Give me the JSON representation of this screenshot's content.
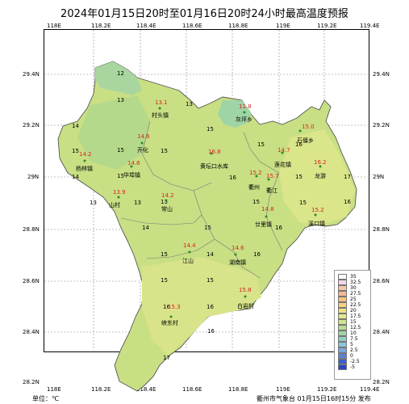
{
  "title": "2024年01月15日20时至01月16日20时24小时最高温度预报",
  "footer_left": "单位：℃",
  "footer_right": "衢州市气象台 01月15日16时15分 发布",
  "lon_ticks": [
    "118E",
    "118.2E",
    "118.4E",
    "118.6E",
    "118.8E",
    "119E",
    "119.2E",
    "119.4E"
  ],
  "lat_ticks": [
    "29.4N",
    "29.2N",
    "29N",
    "28.8N",
    "28.6N",
    "28.4N",
    "28.2N"
  ],
  "stations": [
    {
      "name": "村头镇",
      "temp": "13.1"
    },
    {
      "name": "灰坪乡",
      "temp": "11.8"
    },
    {
      "name": "石僵乡",
      "temp": "15.0"
    },
    {
      "name": "开化",
      "temp": "14.6"
    },
    {
      "name": "杨林镇",
      "temp": "14.2"
    },
    {
      "name": "华埠镇",
      "temp": "14.6"
    },
    {
      "name": "黄坛口水库",
      "temp": "16.8"
    },
    {
      "name": "莲花镇",
      "temp": "14.7"
    },
    {
      "name": "龙游",
      "temp": "16.2"
    },
    {
      "name": "衢州",
      "temp": "15.2"
    },
    {
      "name": "衢江",
      "temp": "15.7"
    },
    {
      "name": "山村",
      "temp": "13.9"
    },
    {
      "name": "常山",
      "temp": "14.2"
    },
    {
      "name": "溪口镇",
      "temp": "15.2"
    },
    {
      "name": "廿里镇",
      "temp": "14.8"
    },
    {
      "name": "江山",
      "temp": "14.4"
    },
    {
      "name": "湖南镇",
      "temp": "14.6"
    },
    {
      "name": "峡东村",
      "temp": "15.3"
    },
    {
      "name": "白岩村",
      "temp": "15.8"
    }
  ],
  "contour_labels": [
    "12",
    "13",
    "13",
    "14",
    "15",
    "15",
    "15",
    "15",
    "16",
    "14",
    "13",
    "15",
    "13",
    "16",
    "15",
    "15",
    "17",
    "16",
    "15",
    "16",
    "14",
    "15",
    "15",
    "14",
    "15",
    "16",
    "16",
    "15",
    "16",
    "17",
    "15",
    "13",
    "16"
  ],
  "legend_labels": [
    "35",
    "32.5",
    "30",
    "27.5",
    "25",
    "22.5",
    "20",
    "17.5",
    "15",
    "12.5",
    "10",
    "7.5",
    "5",
    "2.5",
    "0",
    "-2.5",
    "-5"
  ],
  "legend_colors": [
    "#ffffff",
    "#f0d8e8",
    "#f5c6a8",
    "#f7b894",
    "#f6c27c",
    "#f6d27a",
    "#f2e07e",
    "#e6ea86",
    "#cfe58a",
    "#b9dc90",
    "#9fd4a6",
    "#8fd0c0",
    "#88c6dc",
    "#79a8de",
    "#5c82d6",
    "#3f5fd0",
    "#2a44c6"
  ]
}
